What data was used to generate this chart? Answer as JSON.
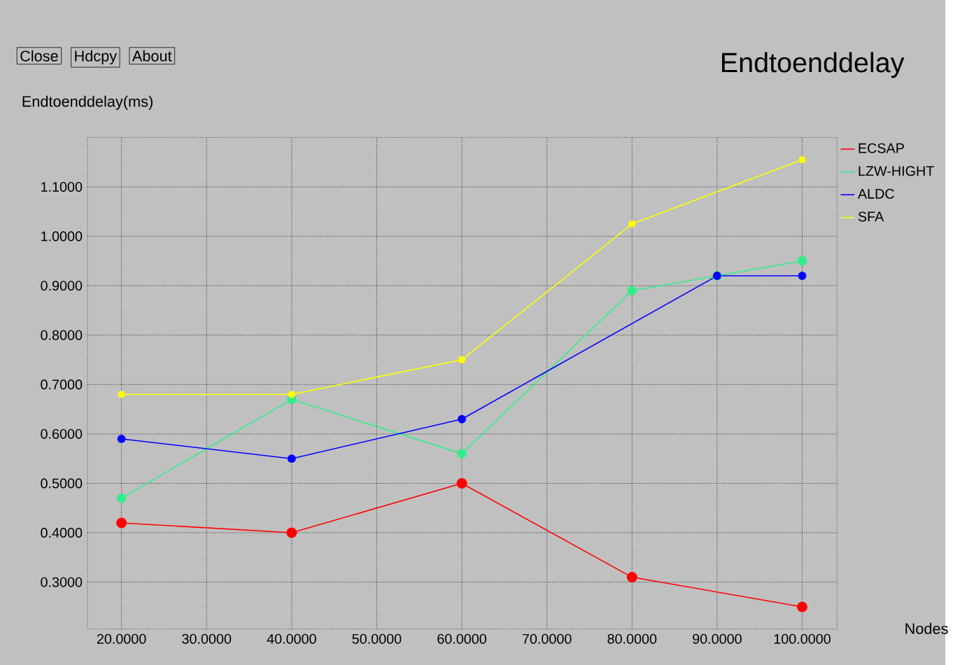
{
  "chart_data": {
    "type": "line",
    "title": "Endtoenddelay",
    "xlabel": "Nodes",
    "ylabel": "Endtoenddelay(ms)",
    "annotations": [
      "Close",
      "Hdcpy",
      "About"
    ],
    "xlim": [
      16.0,
      104.1
    ],
    "ylim": [
      0.205,
      1.2
    ],
    "xticks": [
      {
        "value": 20,
        "label": "20.0000"
      },
      {
        "value": 30,
        "label": "30.0000"
      },
      {
        "value": 40,
        "label": "40.0000"
      },
      {
        "value": 50,
        "label": "50.0000"
      },
      {
        "value": 60,
        "label": "60.0000"
      },
      {
        "value": 70,
        "label": "70.0000"
      },
      {
        "value": 80,
        "label": "80.0000"
      },
      {
        "value": 90,
        "label": "90.0000"
      },
      {
        "value": 100,
        "label": "100.0000"
      }
    ],
    "yticks": [
      {
        "value": 0.3,
        "label": "0.3000"
      },
      {
        "value": 0.4,
        "label": "0.4000"
      },
      {
        "value": 0.5,
        "label": "0.5000"
      },
      {
        "value": 0.6,
        "label": "0.6000"
      },
      {
        "value": 0.7,
        "label": "0.7000"
      },
      {
        "value": 0.8,
        "label": "0.8000"
      },
      {
        "value": 0.9,
        "label": "0.9000"
      },
      {
        "value": 1.0,
        "label": "1.0000"
      },
      {
        "value": 1.1,
        "label": "1.1000"
      }
    ],
    "grid": true,
    "legend": "top right",
    "marker": "circle",
    "line_style": "solid",
    "series": [
      {
        "name": "ECSAP",
        "color": "#ff0000",
        "x": [
          20,
          40,
          60,
          80,
          100
        ],
        "values": [
          0.42,
          0.4,
          0.5,
          0.31,
          0.25
        ]
      },
      {
        "name": "LZW-HIGHT",
        "color": "#33ee88",
        "x": [
          20,
          40,
          60,
          80,
          90,
          100
        ],
        "values": [
          0.47,
          0.67,
          0.56,
          0.89,
          0.92,
          0.95
        ]
      },
      {
        "name": "ALDC",
        "color": "#0000ff",
        "x": [
          20,
          40,
          60,
          90,
          100
        ],
        "values": [
          0.59,
          0.55,
          0.63,
          0.92,
          0.92
        ]
      },
      {
        "name": "SFA",
        "color": "#ffff00",
        "x": [
          20,
          40,
          60,
          80,
          100
        ],
        "values": [
          0.68,
          0.68,
          0.75,
          1.025,
          1.155
        ]
      }
    ]
  }
}
